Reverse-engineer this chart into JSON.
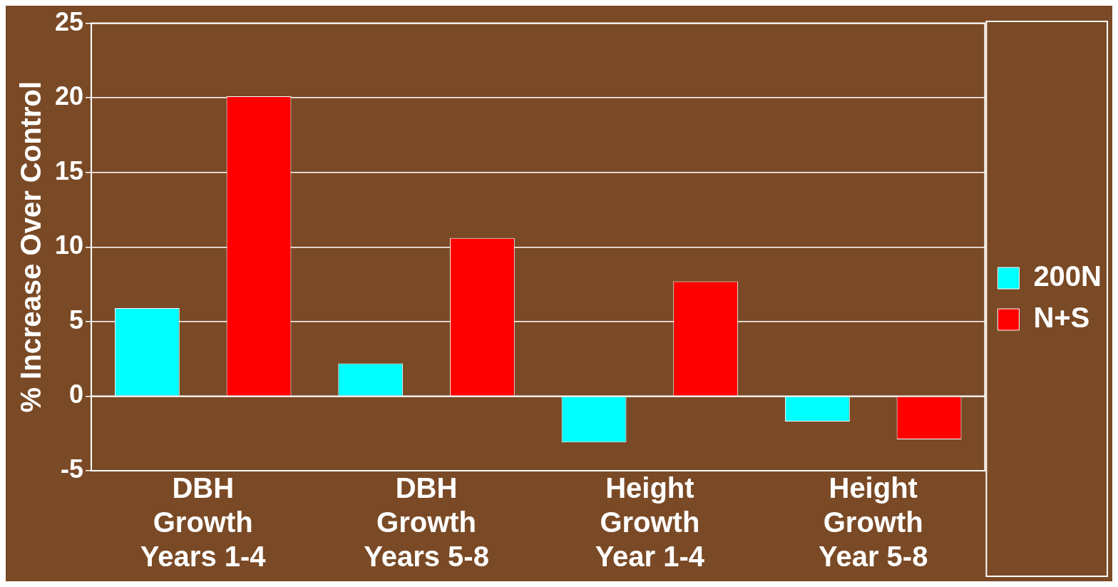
{
  "chart_data": {
    "type": "bar",
    "ylabel": "% Increase Over Control",
    "categories": [
      "DBH Growth Years 1-4",
      "DBH Growth Years 5-8",
      "Height Growth Year 1-4",
      "Height Growth Year 5-8"
    ],
    "series": [
      {
        "name": "200N",
        "color": "#00ffff",
        "values": [
          5.9,
          2.2,
          -3.1,
          -1.7
        ]
      },
      {
        "name": "N+S",
        "color": "#ff0000",
        "values": [
          20.1,
          10.6,
          7.7,
          -2.9
        ]
      }
    ],
    "ylim": [
      -5,
      25
    ],
    "yticks": [
      -5,
      0,
      5,
      10,
      15,
      20,
      25
    ],
    "grid": "y",
    "legend": "right"
  }
}
